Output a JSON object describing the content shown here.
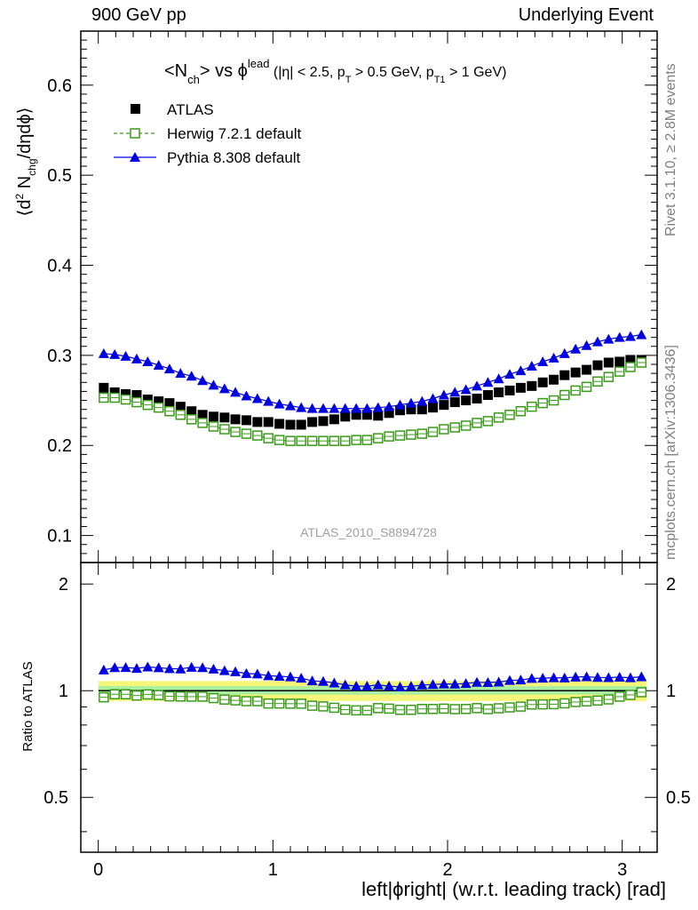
{
  "header": {
    "left": "900 GeV pp",
    "right": "Underlying Event"
  },
  "side_text": {
    "rivet": "Rivet 3.1.10, ≥ 2.8M events",
    "mcplots": "mcplots.cern.ch [arXiv:1306.3436]"
  },
  "watermark": "ATLAS_2010_S8894728",
  "colors": {
    "atlas": "#000000",
    "herwig": "#3a9a1a",
    "pythia": "#0000e0",
    "band_outer": "#f5f57a",
    "band_inner": "#a8f0a0"
  },
  "chart_data": [
    {
      "type": "scatter",
      "title": "<N_ch> vs φ^lead (|η| < 2.5, p_T > 0.5 GeV, p_T1 > 1 GeV)",
      "ylabel": "⟨d² N_chg/dηdφ⟩",
      "xlim": [
        -0.1,
        3.2
      ],
      "ylim": [
        0.07,
        0.66
      ],
      "y_ticks": [
        "0.1",
        "0.2",
        "0.3",
        "0.4",
        "0.5",
        "0.6"
      ],
      "legend_position": "top-left",
      "x": [
        0.0314,
        0.0942,
        0.157,
        0.22,
        0.283,
        0.346,
        0.408,
        0.471,
        0.534,
        0.597,
        0.66,
        0.723,
        0.785,
        0.848,
        0.911,
        0.974,
        1.037,
        1.1,
        1.162,
        1.225,
        1.288,
        1.351,
        1.414,
        1.477,
        1.539,
        1.602,
        1.665,
        1.728,
        1.791,
        1.854,
        1.916,
        1.979,
        2.042,
        2.105,
        2.168,
        2.231,
        2.293,
        2.356,
        2.419,
        2.482,
        2.545,
        2.608,
        2.67,
        2.733,
        2.796,
        2.859,
        2.922,
        2.985,
        3.047,
        3.11
      ],
      "series": [
        {
          "name": "ATLAS",
          "marker": "filled-square",
          "values": [
            0.264,
            0.259,
            0.257,
            0.256,
            0.251,
            0.249,
            0.247,
            0.243,
            0.238,
            0.234,
            0.232,
            0.231,
            0.229,
            0.228,
            0.226,
            0.226,
            0.224,
            0.223,
            0.223,
            0.226,
            0.227,
            0.229,
            0.232,
            0.234,
            0.234,
            0.233,
            0.236,
            0.239,
            0.24,
            0.24,
            0.242,
            0.245,
            0.248,
            0.25,
            0.252,
            0.256,
            0.259,
            0.261,
            0.264,
            0.266,
            0.27,
            0.273,
            0.278,
            0.281,
            0.284,
            0.289,
            0.292,
            0.293,
            0.295,
            0.295
          ]
        },
        {
          "name": "Herwig 7.2.1 default",
          "marker": "open-square",
          "values": [
            0.253,
            0.253,
            0.251,
            0.248,
            0.245,
            0.242,
            0.238,
            0.234,
            0.229,
            0.225,
            0.221,
            0.218,
            0.215,
            0.213,
            0.211,
            0.208,
            0.206,
            0.205,
            0.205,
            0.205,
            0.205,
            0.205,
            0.205,
            0.206,
            0.206,
            0.208,
            0.21,
            0.211,
            0.212,
            0.213,
            0.215,
            0.218,
            0.22,
            0.222,
            0.225,
            0.227,
            0.231,
            0.234,
            0.238,
            0.243,
            0.247,
            0.25,
            0.256,
            0.261,
            0.265,
            0.271,
            0.276,
            0.282,
            0.287,
            0.292
          ]
        },
        {
          "name": "Pythia 8.308 default",
          "marker": "filled-triangle",
          "values": [
            0.302,
            0.301,
            0.299,
            0.296,
            0.293,
            0.289,
            0.285,
            0.28,
            0.277,
            0.272,
            0.267,
            0.263,
            0.259,
            0.255,
            0.252,
            0.249,
            0.246,
            0.244,
            0.242,
            0.241,
            0.241,
            0.241,
            0.241,
            0.241,
            0.241,
            0.242,
            0.243,
            0.245,
            0.247,
            0.249,
            0.252,
            0.256,
            0.259,
            0.262,
            0.266,
            0.27,
            0.274,
            0.279,
            0.283,
            0.288,
            0.293,
            0.297,
            0.302,
            0.307,
            0.311,
            0.315,
            0.318,
            0.32,
            0.321,
            0.323
          ]
        }
      ]
    },
    {
      "type": "scatter",
      "ylabel": "Ratio to ATLAS",
      "xlabel": "left|ϕright| (w.r.t. leading track) [rad]",
      "xlim": [
        -0.1,
        3.2
      ],
      "ylim": [
        0.35,
        2.3
      ],
      "x_ticks": [
        "0",
        "1",
        "2",
        "3"
      ],
      "y_ticks": [
        "0.5",
        "1",
        "2"
      ],
      "log_y": true,
      "band_outer": [
        0.935,
        1.065
      ],
      "band_inner": [
        0.975,
        1.03
      ],
      "series": [
        {
          "name": "Herwig 7.2.1 default",
          "values": [
            0.958,
            0.977,
            0.977,
            0.969,
            0.976,
            0.972,
            0.964,
            0.963,
            0.962,
            0.962,
            0.953,
            0.944,
            0.939,
            0.934,
            0.934,
            0.92,
            0.92,
            0.919,
            0.919,
            0.907,
            0.903,
            0.895,
            0.884,
            0.88,
            0.88,
            0.893,
            0.89,
            0.883,
            0.883,
            0.888,
            0.888,
            0.89,
            0.887,
            0.888,
            0.893,
            0.887,
            0.892,
            0.897,
            0.902,
            0.914,
            0.915,
            0.916,
            0.921,
            0.929,
            0.933,
            0.938,
            0.945,
            0.962,
            0.973,
            0.99
          ]
        },
        {
          "name": "Pythia 8.308 default",
          "values": [
            1.144,
            1.162,
            1.163,
            1.156,
            1.167,
            1.161,
            1.154,
            1.152,
            1.164,
            1.162,
            1.151,
            1.139,
            1.131,
            1.118,
            1.115,
            1.102,
            1.098,
            1.094,
            1.085,
            1.066,
            1.062,
            1.052,
            1.039,
            1.03,
            1.03,
            1.039,
            1.03,
            1.025,
            1.029,
            1.038,
            1.041,
            1.045,
            1.044,
            1.048,
            1.056,
            1.055,
            1.058,
            1.069,
            1.072,
            1.083,
            1.085,
            1.088,
            1.086,
            1.093,
            1.095,
            1.09,
            1.089,
            1.092,
            1.088,
            1.095
          ]
        }
      ]
    }
  ]
}
